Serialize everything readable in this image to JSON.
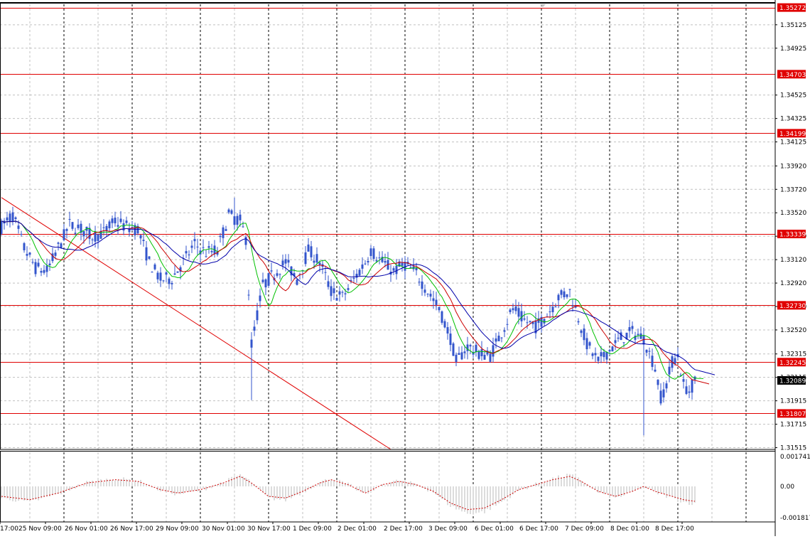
{
  "chart_data": {
    "type": "candlestick",
    "symbol": "GBPUSD",
    "price_axis": {
      "range": [
        1.315,
        1.353
      ],
      "ticks": [
        "1.35125",
        "1.34925",
        "1.34525",
        "1.34325",
        "1.34125",
        "1.33920",
        "1.33720",
        "1.33520",
        "1.33320",
        "1.33120",
        "1.32920",
        "1.32720",
        "1.32520",
        "1.32315",
        "1.32115",
        "1.31915",
        "1.31715",
        "1.31515"
      ],
      "tick_values": [
        1.35125,
        1.34925,
        1.34525,
        1.34325,
        1.34125,
        1.3392,
        1.3372,
        1.3352,
        1.3332,
        1.3312,
        1.3292,
        1.3272,
        1.3252,
        1.32315,
        1.32115,
        1.31915,
        1.31715,
        1.31515
      ]
    },
    "time_axis": {
      "labels": [
        "17:00",
        "25 Nov 09:00",
        "26 Nov 01:00",
        "26 Nov 17:00",
        "29 Nov 09:00",
        "30 Nov 01:00",
        "30 Nov 17:00",
        "1 Dec 09:00",
        "2 Dec 01:00",
        "2 Dec 17:00",
        "3 Dec 09:00",
        "6 Dec 01:00",
        "6 Dec 17:00",
        "7 Dec 09:00",
        "8 Dec 01:00",
        "8 Dec 17:00"
      ]
    },
    "current_price": {
      "label": "1.32089",
      "value": 1.32089
    },
    "levels": [
      {
        "label": "1.35272",
        "value": 1.35272
      },
      {
        "label": "1.34703",
        "value": 1.34703
      },
      {
        "label": "1.34199",
        "value": 1.34199
      },
      {
        "label": "1.33339",
        "value": 1.33339
      },
      {
        "label": "1.32730",
        "value": 1.3273
      },
      {
        "label": "1.32245",
        "value": 1.32245
      },
      {
        "label": "1.31807",
        "value": 1.31807
      }
    ],
    "trendline": {
      "from": {
        "bar": 0,
        "price": 1.3365
      },
      "to": {
        "bar": 137,
        "price": 1.315
      }
    },
    "price_series_keypoints": [
      [
        0,
        1.334
      ],
      [
        4,
        1.335
      ],
      [
        8,
        1.3322
      ],
      [
        12,
        1.3305
      ],
      [
        16,
        1.3302
      ],
      [
        20,
        1.3322
      ],
      [
        24,
        1.3342
      ],
      [
        28,
        1.3338
      ],
      [
        32,
        1.3332
      ],
      [
        36,
        1.3335
      ],
      [
        40,
        1.3345
      ],
      [
        44,
        1.334
      ],
      [
        48,
        1.3338
      ],
      [
        52,
        1.331
      ],
      [
        56,
        1.3295
      ],
      [
        60,
        1.3296
      ],
      [
        64,
        1.331
      ],
      [
        68,
        1.3325
      ],
      [
        72,
        1.3318
      ],
      [
        76,
        1.332
      ],
      [
        80,
        1.335
      ],
      [
        84,
        1.3345
      ],
      [
        86,
        1.333
      ],
      [
        88,
        1.324
      ],
      [
        90,
        1.3265
      ],
      [
        92,
        1.329
      ],
      [
        96,
        1.33
      ],
      [
        100,
        1.331
      ],
      [
        104,
        1.3295
      ],
      [
        108,
        1.332
      ],
      [
        112,
        1.331
      ],
      [
        116,
        1.3285
      ],
      [
        120,
        1.328
      ],
      [
        124,
        1.3295
      ],
      [
        128,
        1.331
      ],
      [
        130,
        1.332
      ],
      [
        134,
        1.331
      ],
      [
        138,
        1.3302
      ],
      [
        142,
        1.3308
      ],
      [
        146,
        1.33
      ],
      [
        150,
        1.3285
      ],
      [
        154,
        1.327
      ],
      [
        158,
        1.3245
      ],
      [
        160,
        1.3225
      ],
      [
        164,
        1.3238
      ],
      [
        168,
        1.3232
      ],
      [
        172,
        1.323
      ],
      [
        176,
        1.325
      ],
      [
        180,
        1.327
      ],
      [
        184,
        1.326
      ],
      [
        188,
        1.3255
      ],
      [
        192,
        1.3265
      ],
      [
        196,
        1.328
      ],
      [
        200,
        1.3285
      ],
      [
        202,
        1.327
      ],
      [
        206,
        1.324
      ],
      [
        210,
        1.3225
      ],
      [
        214,
        1.3235
      ],
      [
        218,
        1.3245
      ],
      [
        222,
        1.325
      ],
      [
        226,
        1.3245
      ],
      [
        228,
        1.3232
      ],
      [
        230,
        1.322
      ],
      [
        232,
        1.3195
      ],
      [
        234,
        1.3205
      ],
      [
        236,
        1.3225
      ],
      [
        238,
        1.323
      ],
      [
        240,
        1.3205
      ],
      [
        242,
        1.32
      ],
      [
        244,
        1.3208
      ]
    ],
    "bar_count": 245,
    "oscillator": {
      "top_label": "0.001741",
      "zero_label": "0.00",
      "bottom_label": "-0.001817",
      "range": [
        -0.001817,
        0.001741
      ],
      "keypoints": [
        [
          0,
          -0.0006
        ],
        [
          10,
          -0.0008
        ],
        [
          20,
          -0.0004
        ],
        [
          30,
          0.0002
        ],
        [
          40,
          0.0004
        ],
        [
          48,
          0.0003
        ],
        [
          56,
          -0.0002
        ],
        [
          62,
          -0.0004
        ],
        [
          70,
          -0.0002
        ],
        [
          78,
          0.0002
        ],
        [
          84,
          0.0006
        ],
        [
          88,
          0.0002
        ],
        [
          94,
          -0.0006
        ],
        [
          100,
          -0.0007
        ],
        [
          106,
          -0.0003
        ],
        [
          112,
          0.0002
        ],
        [
          116,
          0.0004
        ],
        [
          122,
          0.0001
        ],
        [
          128,
          -0.0004
        ],
        [
          134,
          0.0001
        ],
        [
          140,
          0.0003
        ],
        [
          146,
          0.0001
        ],
        [
          152,
          -0.0003
        ],
        [
          158,
          -0.001
        ],
        [
          164,
          -0.0014
        ],
        [
          170,
          -0.0013
        ],
        [
          176,
          -0.0008
        ],
        [
          182,
          -0.0002
        ],
        [
          188,
          0.0001
        ],
        [
          194,
          0.0004
        ],
        [
          200,
          0.0006
        ],
        [
          204,
          0.0003
        ],
        [
          210,
          -0.0003
        ],
        [
          216,
          -0.0006
        ],
        [
          222,
          -0.0003
        ],
        [
          226,
          0.0
        ],
        [
          230,
          -0.0003
        ],
        [
          236,
          -0.0006
        ],
        [
          240,
          -0.0008
        ],
        [
          244,
          -0.0009
        ]
      ]
    },
    "colors": {
      "background": "#ffffff",
      "grid": "#c0c0c0",
      "vertical_dashes": "#000000",
      "candles": "#3355cc",
      "ma_fast": "#00c000",
      "ma_mid": "#cc0000",
      "ma_slow": "#0000aa",
      "level_line": "#e00000",
      "level_label_bg": "#e00000",
      "level_label_text": "#ffffff",
      "current_label_bg": "#000000",
      "current_label_text": "#ffffff",
      "oscillator_bars": "#b8b8b8",
      "oscillator_signal": "#cc0000"
    }
  }
}
